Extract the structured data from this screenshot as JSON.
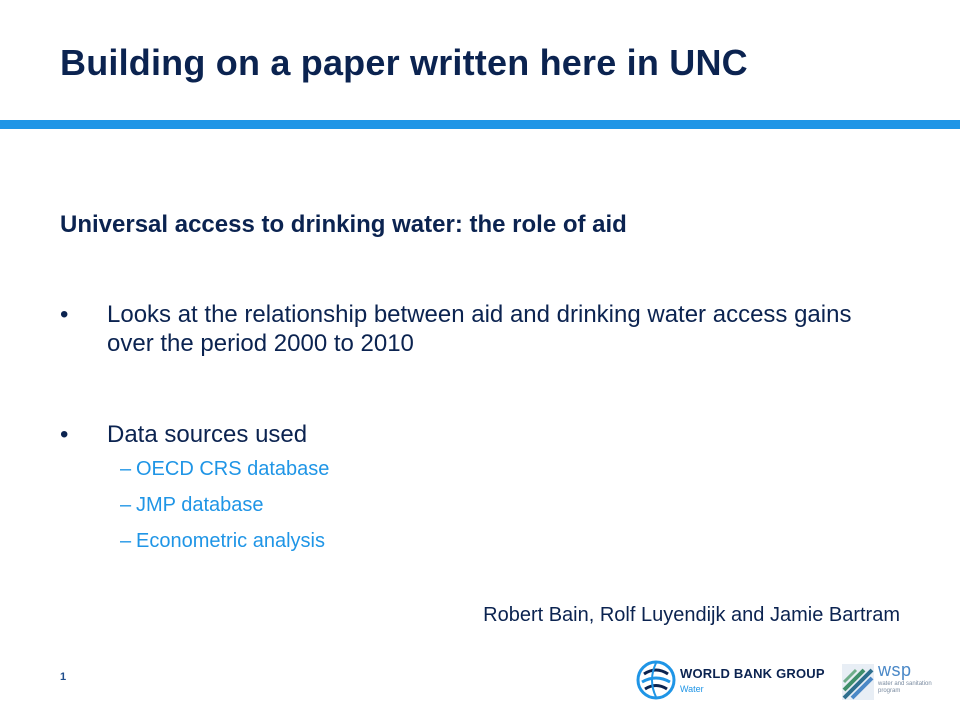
{
  "slide": {
    "title": "Building on a paper written here in UNC",
    "subtitle": "Universal access to drinking water: the role of aid",
    "bullets": [
      {
        "marker": "•",
        "text": "Looks at the relationship between aid and drinking water access gains over the period 2000 to 2010"
      },
      {
        "marker": "•",
        "text": "Data sources used"
      }
    ],
    "sub_bullets": [
      {
        "marker": "–",
        "text": "OECD CRS database"
      },
      {
        "marker": "–",
        "text": "JMP database"
      },
      {
        "marker": "–",
        "text": "Econometric analysis"
      }
    ],
    "authors": "Robert Bain, Rolf Luyendijk and Jamie Bartram",
    "page_number": "1"
  },
  "logos": {
    "world_bank": {
      "name": "WORLD BANK GROUP",
      "sub": "Water"
    },
    "wsp": {
      "name": "wsp",
      "sub": "water and sanitation program"
    }
  },
  "colors": {
    "title": "#0b2350",
    "accent_bar": "#1f95e6",
    "sub_bullet_text": "#1f95e6"
  }
}
